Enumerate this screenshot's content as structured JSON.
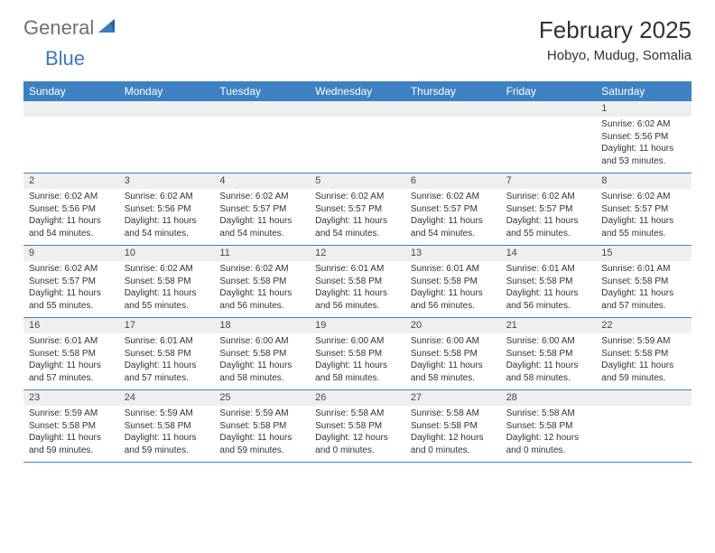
{
  "logo": {
    "general": "General",
    "blue": "Blue"
  },
  "header": {
    "title": "February 2025",
    "subtitle": "Hobyo, Mudug, Somalia"
  },
  "colors": {
    "header_band": "#3e81c3",
    "numrow_bg": "#eef0f0",
    "text": "#333333",
    "logo_gray": "#6b7175",
    "logo_blue": "#3a7bbf",
    "border": "#3e81c3"
  },
  "dayNames": [
    "Sunday",
    "Monday",
    "Tuesday",
    "Wednesday",
    "Thursday",
    "Friday",
    "Saturday"
  ],
  "weeks": [
    [
      null,
      null,
      null,
      null,
      null,
      null,
      {
        "n": "1",
        "sunrise": "Sunrise: 6:02 AM",
        "sunset": "Sunset: 5:56 PM",
        "daylight": "Daylight: 11 hours and 53 minutes."
      }
    ],
    [
      {
        "n": "2",
        "sunrise": "Sunrise: 6:02 AM",
        "sunset": "Sunset: 5:56 PM",
        "daylight": "Daylight: 11 hours and 54 minutes."
      },
      {
        "n": "3",
        "sunrise": "Sunrise: 6:02 AM",
        "sunset": "Sunset: 5:56 PM",
        "daylight": "Daylight: 11 hours and 54 minutes."
      },
      {
        "n": "4",
        "sunrise": "Sunrise: 6:02 AM",
        "sunset": "Sunset: 5:57 PM",
        "daylight": "Daylight: 11 hours and 54 minutes."
      },
      {
        "n": "5",
        "sunrise": "Sunrise: 6:02 AM",
        "sunset": "Sunset: 5:57 PM",
        "daylight": "Daylight: 11 hours and 54 minutes."
      },
      {
        "n": "6",
        "sunrise": "Sunrise: 6:02 AM",
        "sunset": "Sunset: 5:57 PM",
        "daylight": "Daylight: 11 hours and 54 minutes."
      },
      {
        "n": "7",
        "sunrise": "Sunrise: 6:02 AM",
        "sunset": "Sunset: 5:57 PM",
        "daylight": "Daylight: 11 hours and 55 minutes."
      },
      {
        "n": "8",
        "sunrise": "Sunrise: 6:02 AM",
        "sunset": "Sunset: 5:57 PM",
        "daylight": "Daylight: 11 hours and 55 minutes."
      }
    ],
    [
      {
        "n": "9",
        "sunrise": "Sunrise: 6:02 AM",
        "sunset": "Sunset: 5:57 PM",
        "daylight": "Daylight: 11 hours and 55 minutes."
      },
      {
        "n": "10",
        "sunrise": "Sunrise: 6:02 AM",
        "sunset": "Sunset: 5:58 PM",
        "daylight": "Daylight: 11 hours and 55 minutes."
      },
      {
        "n": "11",
        "sunrise": "Sunrise: 6:02 AM",
        "sunset": "Sunset: 5:58 PM",
        "daylight": "Daylight: 11 hours and 56 minutes."
      },
      {
        "n": "12",
        "sunrise": "Sunrise: 6:01 AM",
        "sunset": "Sunset: 5:58 PM",
        "daylight": "Daylight: 11 hours and 56 minutes."
      },
      {
        "n": "13",
        "sunrise": "Sunrise: 6:01 AM",
        "sunset": "Sunset: 5:58 PM",
        "daylight": "Daylight: 11 hours and 56 minutes."
      },
      {
        "n": "14",
        "sunrise": "Sunrise: 6:01 AM",
        "sunset": "Sunset: 5:58 PM",
        "daylight": "Daylight: 11 hours and 56 minutes."
      },
      {
        "n": "15",
        "sunrise": "Sunrise: 6:01 AM",
        "sunset": "Sunset: 5:58 PM",
        "daylight": "Daylight: 11 hours and 57 minutes."
      }
    ],
    [
      {
        "n": "16",
        "sunrise": "Sunrise: 6:01 AM",
        "sunset": "Sunset: 5:58 PM",
        "daylight": "Daylight: 11 hours and 57 minutes."
      },
      {
        "n": "17",
        "sunrise": "Sunrise: 6:01 AM",
        "sunset": "Sunset: 5:58 PM",
        "daylight": "Daylight: 11 hours and 57 minutes."
      },
      {
        "n": "18",
        "sunrise": "Sunrise: 6:00 AM",
        "sunset": "Sunset: 5:58 PM",
        "daylight": "Daylight: 11 hours and 58 minutes."
      },
      {
        "n": "19",
        "sunrise": "Sunrise: 6:00 AM",
        "sunset": "Sunset: 5:58 PM",
        "daylight": "Daylight: 11 hours and 58 minutes."
      },
      {
        "n": "20",
        "sunrise": "Sunrise: 6:00 AM",
        "sunset": "Sunset: 5:58 PM",
        "daylight": "Daylight: 11 hours and 58 minutes."
      },
      {
        "n": "21",
        "sunrise": "Sunrise: 6:00 AM",
        "sunset": "Sunset: 5:58 PM",
        "daylight": "Daylight: 11 hours and 58 minutes."
      },
      {
        "n": "22",
        "sunrise": "Sunrise: 5:59 AM",
        "sunset": "Sunset: 5:58 PM",
        "daylight": "Daylight: 11 hours and 59 minutes."
      }
    ],
    [
      {
        "n": "23",
        "sunrise": "Sunrise: 5:59 AM",
        "sunset": "Sunset: 5:58 PM",
        "daylight": "Daylight: 11 hours and 59 minutes."
      },
      {
        "n": "24",
        "sunrise": "Sunrise: 5:59 AM",
        "sunset": "Sunset: 5:58 PM",
        "daylight": "Daylight: 11 hours and 59 minutes."
      },
      {
        "n": "25",
        "sunrise": "Sunrise: 5:59 AM",
        "sunset": "Sunset: 5:58 PM",
        "daylight": "Daylight: 11 hours and 59 minutes."
      },
      {
        "n": "26",
        "sunrise": "Sunrise: 5:58 AM",
        "sunset": "Sunset: 5:58 PM",
        "daylight": "Daylight: 12 hours and 0 minutes."
      },
      {
        "n": "27",
        "sunrise": "Sunrise: 5:58 AM",
        "sunset": "Sunset: 5:58 PM",
        "daylight": "Daylight: 12 hours and 0 minutes."
      },
      {
        "n": "28",
        "sunrise": "Sunrise: 5:58 AM",
        "sunset": "Sunset: 5:58 PM",
        "daylight": "Daylight: 12 hours and 0 minutes."
      },
      null
    ]
  ]
}
